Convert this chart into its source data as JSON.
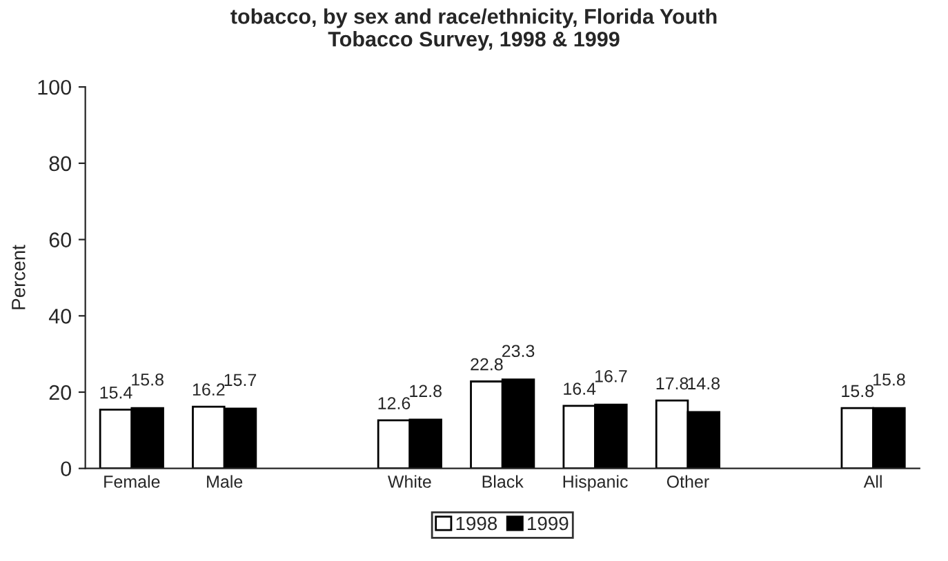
{
  "chart_data": {
    "type": "bar",
    "title": "tobacco, by sex and race/ethnicity, Florida Youth\nTobacco Survey, 1998 & 1999",
    "ylabel": "Percent",
    "categories": [
      "Female",
      "Male",
      null,
      "White",
      "Black",
      "Hispanic",
      "Other",
      null,
      "All"
    ],
    "series": [
      {
        "name": "1998",
        "color": "#ffffff",
        "values": [
          15.4,
          16.2,
          null,
          12.6,
          22.8,
          16.4,
          17.8,
          null,
          15.8
        ]
      },
      {
        "name": "1999",
        "color": "#000000",
        "values": [
          15.8,
          15.7,
          null,
          12.8,
          23.3,
          16.7,
          14.8,
          null,
          15.8
        ]
      }
    ],
    "ylim": [
      0,
      100
    ],
    "yticks": [
      0,
      20,
      40,
      60,
      80,
      100
    ],
    "grid": false,
    "legend": "bottom",
    "data_labels": true
  }
}
